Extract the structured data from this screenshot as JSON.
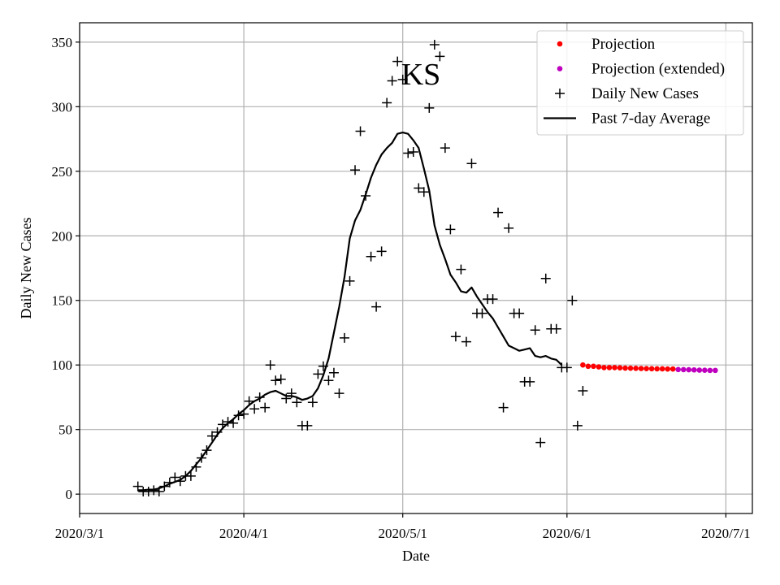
{
  "chart_data": {
    "type": "line",
    "title": "KS",
    "xlabel": "Date",
    "ylabel": "Daily New Cases",
    "x_ticks": [
      "2020/3/1",
      "2020/4/1",
      "2020/5/1",
      "2020/6/1",
      "2020/7/1"
    ],
    "x_tick_dates": [
      "2020-03-01",
      "2020-04-01",
      "2020-05-01",
      "2020-06-01",
      "2020-07-01"
    ],
    "y_ticks": [
      0,
      50,
      100,
      150,
      200,
      250,
      300,
      350
    ],
    "xlim": [
      "2020-03-01",
      "2020-07-06"
    ],
    "ylim": [
      -15,
      365
    ],
    "grid": true,
    "legend_position": "top-right",
    "colors": {
      "projection": "#ff0000",
      "projection_extended": "#bf00bf",
      "daily": "#000000",
      "average": "#000000"
    },
    "series": [
      {
        "name": "Daily New Cases",
        "marker": "plus",
        "points": [
          [
            "2020-03-12",
            6
          ],
          [
            "2020-03-13",
            2
          ],
          [
            "2020-03-14",
            2
          ],
          [
            "2020-03-15",
            3
          ],
          [
            "2020-03-16",
            2
          ],
          [
            "2020-03-17",
            6
          ],
          [
            "2020-03-18",
            9
          ],
          [
            "2020-03-19",
            13
          ],
          [
            "2020-03-20",
            10
          ],
          [
            "2020-03-21",
            14
          ],
          [
            "2020-03-22",
            14
          ],
          [
            "2020-03-23",
            21
          ],
          [
            "2020-03-24",
            28
          ],
          [
            "2020-03-25",
            34
          ],
          [
            "2020-03-26",
            45
          ],
          [
            "2020-03-27",
            48
          ],
          [
            "2020-03-28",
            54
          ],
          [
            "2020-03-29",
            56
          ],
          [
            "2020-03-30",
            55
          ],
          [
            "2020-03-31",
            61
          ],
          [
            "2020-04-01",
            62
          ],
          [
            "2020-04-02",
            72
          ],
          [
            "2020-04-03",
            66
          ],
          [
            "2020-04-04",
            75
          ],
          [
            "2020-04-05",
            67
          ],
          [
            "2020-04-06",
            100
          ],
          [
            "2020-04-07",
            88
          ],
          [
            "2020-04-08",
            89
          ],
          [
            "2020-04-09",
            74
          ],
          [
            "2020-04-10",
            78
          ],
          [
            "2020-04-11",
            71
          ],
          [
            "2020-04-12",
            53
          ],
          [
            "2020-04-13",
            53
          ],
          [
            "2020-04-14",
            71
          ],
          [
            "2020-04-15",
            93
          ],
          [
            "2020-04-16",
            99
          ],
          [
            "2020-04-17",
            88
          ],
          [
            "2020-04-18",
            94
          ],
          [
            "2020-04-19",
            78
          ],
          [
            "2020-04-20",
            121
          ],
          [
            "2020-04-21",
            165
          ],
          [
            "2020-04-22",
            251
          ],
          [
            "2020-04-23",
            281
          ],
          [
            "2020-04-24",
            231
          ],
          [
            "2020-04-25",
            184
          ],
          [
            "2020-04-26",
            145
          ],
          [
            "2020-04-27",
            188
          ],
          [
            "2020-04-28",
            303
          ],
          [
            "2020-04-29",
            320
          ],
          [
            "2020-04-30",
            335
          ],
          [
            "2020-05-01",
            321
          ],
          [
            "2020-05-02",
            264
          ],
          [
            "2020-05-03",
            265
          ],
          [
            "2020-05-04",
            237
          ],
          [
            "2020-05-05",
            234
          ],
          [
            "2020-05-06",
            299
          ],
          [
            "2020-05-07",
            348
          ],
          [
            "2020-05-08",
            339
          ],
          [
            "2020-05-09",
            268
          ],
          [
            "2020-05-10",
            205
          ],
          [
            "2020-05-11",
            122
          ],
          [
            "2020-05-12",
            174
          ],
          [
            "2020-05-13",
            118
          ],
          [
            "2020-05-14",
            256
          ],
          [
            "2020-05-15",
            140
          ],
          [
            "2020-05-16",
            140
          ],
          [
            "2020-05-17",
            151
          ],
          [
            "2020-05-18",
            151
          ],
          [
            "2020-05-19",
            218
          ],
          [
            "2020-05-20",
            67
          ],
          [
            "2020-05-21",
            206
          ],
          [
            "2020-05-22",
            140
          ],
          [
            "2020-05-23",
            140
          ],
          [
            "2020-05-24",
            87
          ],
          [
            "2020-05-25",
            87
          ],
          [
            "2020-05-26",
            127
          ],
          [
            "2020-05-27",
            40
          ],
          [
            "2020-05-28",
            167
          ],
          [
            "2020-05-29",
            128
          ],
          [
            "2020-05-30",
            128
          ],
          [
            "2020-05-31",
            98
          ],
          [
            "2020-06-01",
            98
          ],
          [
            "2020-06-02",
            150
          ],
          [
            "2020-06-03",
            53
          ],
          [
            "2020-06-04",
            80
          ]
        ]
      },
      {
        "name": "Past 7-day Average",
        "marker": "line",
        "points": [
          [
            "2020-03-12",
            3
          ],
          [
            "2020-03-13",
            3
          ],
          [
            "2020-03-14",
            3.5
          ],
          [
            "2020-03-15",
            3.5
          ],
          [
            "2020-03-16",
            4.5
          ],
          [
            "2020-03-17",
            6
          ],
          [
            "2020-03-18",
            8
          ],
          [
            "2020-03-19",
            9.5
          ],
          [
            "2020-03-20",
            11
          ],
          [
            "2020-03-21",
            14
          ],
          [
            "2020-03-22",
            18
          ],
          [
            "2020-03-23",
            23
          ],
          [
            "2020-03-24",
            28
          ],
          [
            "2020-03-25",
            34
          ],
          [
            "2020-03-26",
            40
          ],
          [
            "2020-03-27",
            46
          ],
          [
            "2020-03-28",
            51
          ],
          [
            "2020-03-29",
            55
          ],
          [
            "2020-03-30",
            58
          ],
          [
            "2020-03-31",
            62
          ],
          [
            "2020-04-01",
            65
          ],
          [
            "2020-04-02",
            69
          ],
          [
            "2020-04-03",
            72
          ],
          [
            "2020-04-04",
            74
          ],
          [
            "2020-04-05",
            77
          ],
          [
            "2020-04-06",
            79
          ],
          [
            "2020-04-07",
            80
          ],
          [
            "2020-04-08",
            78
          ],
          [
            "2020-04-09",
            76
          ],
          [
            "2020-04-10",
            76
          ],
          [
            "2020-04-11",
            75
          ],
          [
            "2020-04-12",
            73
          ],
          [
            "2020-04-13",
            74
          ],
          [
            "2020-04-14",
            76
          ],
          [
            "2020-04-15",
            82
          ],
          [
            "2020-04-16",
            92
          ],
          [
            "2020-04-17",
            105
          ],
          [
            "2020-04-18",
            125
          ],
          [
            "2020-04-19",
            145
          ],
          [
            "2020-04-20",
            168
          ],
          [
            "2020-04-21",
            198
          ],
          [
            "2020-04-22",
            212
          ],
          [
            "2020-04-23",
            220
          ],
          [
            "2020-04-24",
            232
          ],
          [
            "2020-04-25",
            245
          ],
          [
            "2020-04-26",
            255
          ],
          [
            "2020-04-27",
            263
          ],
          [
            "2020-04-28",
            268
          ],
          [
            "2020-04-29",
            272
          ],
          [
            "2020-04-30",
            279
          ],
          [
            "2020-05-01",
            280
          ],
          [
            "2020-05-02",
            279
          ],
          [
            "2020-05-03",
            274
          ],
          [
            "2020-05-04",
            268
          ],
          [
            "2020-05-05",
            252
          ],
          [
            "2020-05-06",
            235
          ],
          [
            "2020-05-07",
            208
          ],
          [
            "2020-05-08",
            193
          ],
          [
            "2020-05-09",
            182
          ],
          [
            "2020-05-10",
            170
          ],
          [
            "2020-05-11",
            164
          ],
          [
            "2020-05-12",
            157
          ],
          [
            "2020-05-13",
            156
          ],
          [
            "2020-05-14",
            160
          ],
          [
            "2020-05-15",
            153
          ],
          [
            "2020-05-16",
            147
          ],
          [
            "2020-05-17",
            141
          ],
          [
            "2020-05-18",
            136
          ],
          [
            "2020-05-19",
            129
          ],
          [
            "2020-05-20",
            122
          ],
          [
            "2020-05-21",
            115
          ],
          [
            "2020-05-22",
            113
          ],
          [
            "2020-05-23",
            111
          ],
          [
            "2020-05-24",
            112
          ],
          [
            "2020-05-25",
            113
          ],
          [
            "2020-05-26",
            107
          ],
          [
            "2020-05-27",
            106
          ],
          [
            "2020-05-28",
            107
          ],
          [
            "2020-05-29",
            105
          ],
          [
            "2020-05-30",
            104
          ],
          [
            "2020-05-31",
            100
          ]
        ]
      },
      {
        "name": "Projection",
        "marker": "dot",
        "points": [
          [
            "2020-06-04",
            100
          ],
          [
            "2020-06-05",
            99
          ],
          [
            "2020-06-06",
            99
          ],
          [
            "2020-06-07",
            98.5
          ],
          [
            "2020-06-08",
            98
          ],
          [
            "2020-06-09",
            98
          ],
          [
            "2020-06-10",
            98
          ],
          [
            "2020-06-11",
            97.8
          ],
          [
            "2020-06-12",
            97.6
          ],
          [
            "2020-06-13",
            97.5
          ],
          [
            "2020-06-14",
            97.4
          ],
          [
            "2020-06-15",
            97.3
          ],
          [
            "2020-06-16",
            97.2
          ],
          [
            "2020-06-17",
            97.1
          ],
          [
            "2020-06-18",
            97
          ],
          [
            "2020-06-19",
            97
          ],
          [
            "2020-06-20",
            96.9
          ],
          [
            "2020-06-21",
            96.9
          ]
        ]
      },
      {
        "name": "Projection (extended)",
        "marker": "dot",
        "points": [
          [
            "2020-06-22",
            96.5
          ],
          [
            "2020-06-23",
            96.4
          ],
          [
            "2020-06-24",
            96.3
          ],
          [
            "2020-06-25",
            96.2
          ],
          [
            "2020-06-26",
            96
          ],
          [
            "2020-06-27",
            95.9
          ],
          [
            "2020-06-28",
            95.8
          ],
          [
            "2020-06-29",
            95.8
          ]
        ]
      }
    ],
    "legend": [
      {
        "label": "Projection",
        "key": "projection"
      },
      {
        "label": "Projection (extended)",
        "key": "projection_extended"
      },
      {
        "label": "Daily New Cases",
        "key": "daily"
      },
      {
        "label": "Past 7-day Average",
        "key": "average"
      }
    ]
  }
}
